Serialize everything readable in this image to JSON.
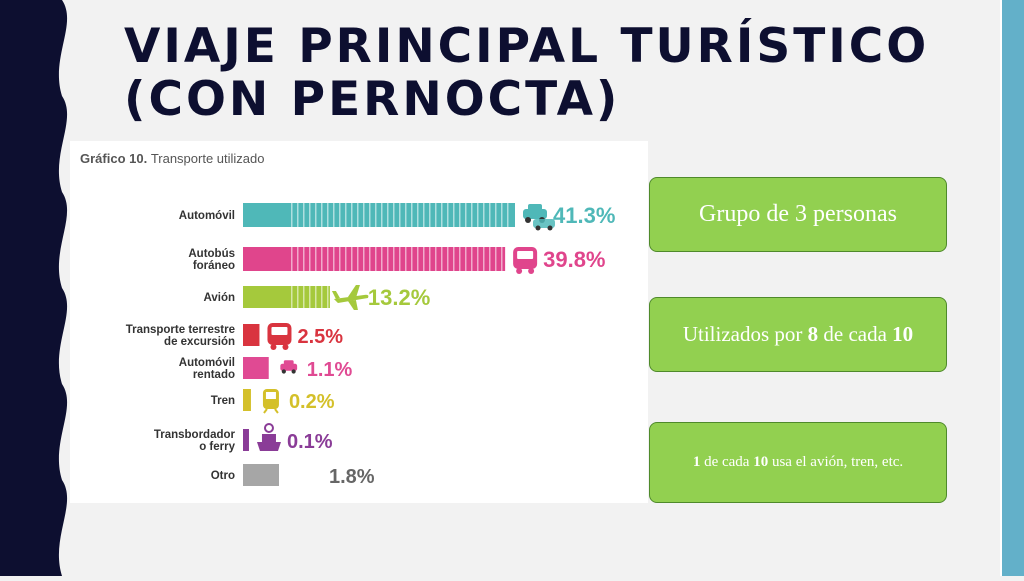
{
  "slide": {
    "title": "VIAJE PRINCIPAL TURÍSTICO (CON PERNOCTA)"
  },
  "colors": {
    "left_band": "#0d0f30",
    "right_band": "#63b0c9",
    "callout_fill": "#92d050"
  },
  "callouts": [
    {
      "parts": [
        {
          "text": "Grupo de 3 personas",
          "bold": false
        }
      ]
    },
    {
      "parts": [
        {
          "text": "Utilizados por ",
          "bold": false
        },
        {
          "text": "8",
          "bold": true
        },
        {
          "text": " de cada ",
          "bold": false
        },
        {
          "text": "10",
          "bold": true
        }
      ]
    },
    {
      "parts": [
        {
          "text": "1",
          "bold": true
        },
        {
          "text": " de cada ",
          "bold": false
        },
        {
          "text": "10",
          "bold": true
        },
        {
          "text": " usa el avión, tren, etc.",
          "bold": false
        }
      ]
    }
  ],
  "chart_data": {
    "type": "bar",
    "orientation": "horizontal",
    "title_prefix": "Gráfico 10.",
    "title": "Transporte utilizado",
    "xlabel": "",
    "ylabel": "",
    "xlim": [
      0,
      41.3
    ],
    "grid": false,
    "categories": [
      [
        "Automóvil"
      ],
      [
        "Autobús",
        "foráneo"
      ],
      [
        "Avión"
      ],
      [
        "Transporte terrestre",
        "de excursión"
      ],
      [
        "Automóvil",
        "rentado"
      ],
      [
        "Tren"
      ],
      [
        "Transbordador",
        "o ferry"
      ],
      [
        "Otro"
      ]
    ],
    "values": [
      41.3,
      39.8,
      13.2,
      2.5,
      1.1,
      0.2,
      0.1,
      1.8
    ],
    "labels": [
      "41.3%",
      "39.8%",
      "13.2%",
      "2.5%",
      "1.1%",
      "0.2%",
      "0.1%",
      "1.8%"
    ],
    "colors": [
      "#4fb8b8",
      "#e0458c",
      "#a5c93c",
      "#d9343f",
      "#e04a93",
      "#d4c02a",
      "#8a3c97",
      "#a6a6a6"
    ],
    "icons": [
      "car-icon",
      "bus-icon",
      "airplane-icon",
      "tour-bus-icon",
      "rental-car-icon",
      "train-icon",
      "ferry-icon",
      "none"
    ]
  }
}
